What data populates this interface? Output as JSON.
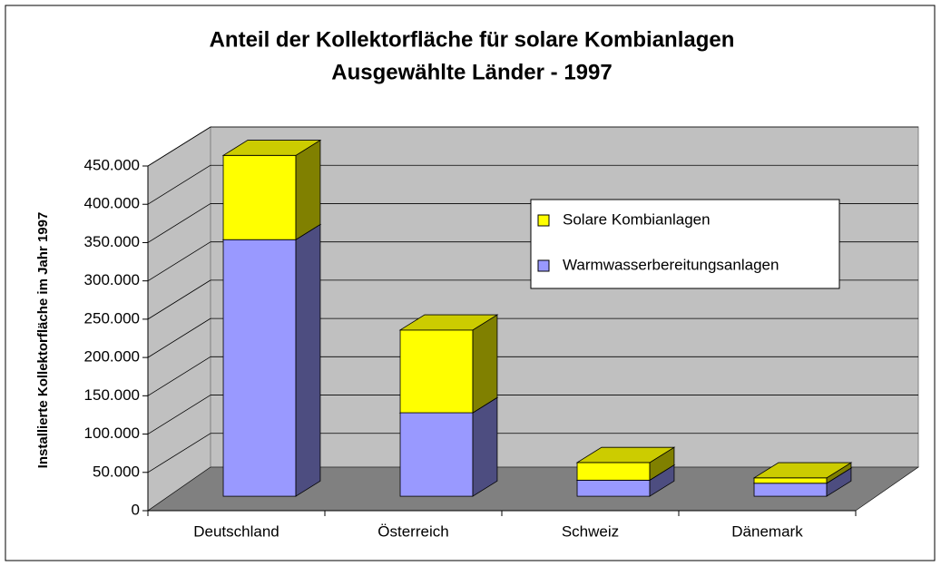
{
  "chart_data": {
    "type": "bar3d_stacked",
    "title": "Anteil der Kollektorfläche für solare Kombianlagen",
    "subtitle": "Ausgewählte Länder - 1997",
    "y_label": "Installierte Kollektorfläche im Jahr 1997",
    "categories": [
      "Deutschland",
      "Österreich",
      "Schweiz",
      "Dänemark"
    ],
    "series": [
      {
        "name": "Warmwasserbereitungsanlagen",
        "color": "#9999ff",
        "values": [
          335000,
          109000,
          21000,
          17000
        ]
      },
      {
        "name": "Solare Kombianlagen",
        "color": "#ffff00",
        "values": [
          110000,
          108000,
          23000,
          7000
        ]
      }
    ],
    "ylim": [
      0,
      450000
    ],
    "yticks": [
      0,
      {
        "value": 50000,
        "label": "50.000"
      },
      {
        "value": 100000,
        "label": "100.000"
      },
      {
        "value": 150000,
        "label": "150.000"
      },
      {
        "value": 200000,
        "label": "200.000"
      },
      {
        "value": 250000,
        "label": "250.000"
      },
      {
        "value": 300000,
        "label": "300.000"
      },
      {
        "value": 350000,
        "label": "350.000"
      },
      {
        "value": 400000,
        "label": "400.000"
      },
      {
        "value": 450000,
        "label": "450.000"
      }
    ],
    "grid": true,
    "legend": "right"
  }
}
